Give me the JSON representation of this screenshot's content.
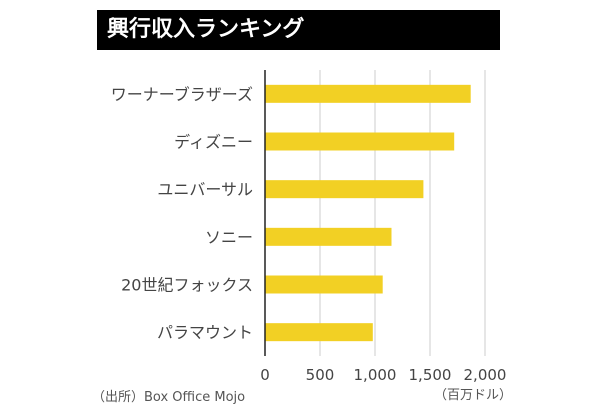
{
  "header": {
    "title": "興行収入ランキング"
  },
  "footer": {
    "source": "（出所）Box Office Mojo",
    "unit": "（百万ドル）"
  },
  "chart_data": {
    "type": "bar",
    "orientation": "horizontal",
    "title": "興行収入ランキング",
    "categories": [
      "ワーナーブラザーズ",
      "ディズニー",
      "ユニバーサル",
      "ソニー",
      "20世紀フォックス",
      "パラマウント"
    ],
    "values": [
      1870,
      1720,
      1440,
      1150,
      1070,
      980
    ],
    "xlim": [
      0,
      2000
    ],
    "xticks": [
      0,
      500,
      1000,
      1500,
      2000
    ],
    "xtick_labels": [
      "0",
      "500",
      "1,000",
      "1,500",
      "2,000"
    ],
    "xlabel": "",
    "ylabel": "",
    "grid": "vertical",
    "bar_color": "#f2d024",
    "grid_color": "#cccccc",
    "axis_color": "#222222",
    "label_color": "#444444"
  }
}
